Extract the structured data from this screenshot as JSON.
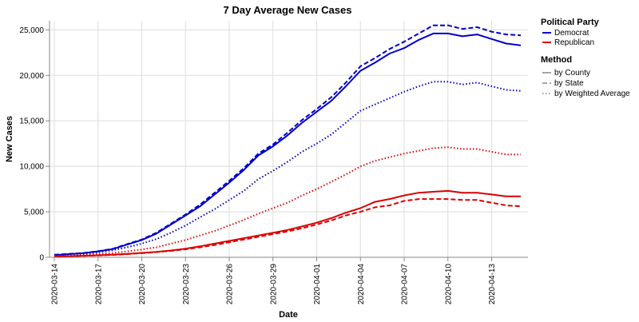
{
  "chart_data": {
    "type": "line",
    "title": "7 Day Average New Cases",
    "xlabel": "Date",
    "ylabel": "New Cases",
    "ylim": [
      0,
      26000
    ],
    "y_ticks": [
      0,
      5000,
      10000,
      15000,
      20000,
      25000
    ],
    "y_tick_labels": [
      "0",
      "5,000",
      "10,000",
      "15,000",
      "20,000",
      "25,000"
    ],
    "x_tick_labels": [
      "2020-03-14",
      "2020-03-17",
      "2020-03-20",
      "2020-03-23",
      "2020-03-26",
      "2020-03-29",
      "2020-04-01",
      "2020-04-04",
      "2020-04-07",
      "2020-04-10",
      "2020-04-13"
    ],
    "x": [
      "2020-03-14",
      "2020-03-15",
      "2020-03-16",
      "2020-03-17",
      "2020-03-18",
      "2020-03-19",
      "2020-03-20",
      "2020-03-21",
      "2020-03-22",
      "2020-03-23",
      "2020-03-24",
      "2020-03-25",
      "2020-03-26",
      "2020-03-27",
      "2020-03-28",
      "2020-03-29",
      "2020-03-30",
      "2020-03-31",
      "2020-04-01",
      "2020-04-02",
      "2020-04-03",
      "2020-04-04",
      "2020-04-05",
      "2020-04-06",
      "2020-04-07",
      "2020-04-08",
      "2020-04-09",
      "2020-04-10",
      "2020-04-11",
      "2020-04-12",
      "2020-04-13",
      "2020-04-14",
      "2020-04-15"
    ],
    "grid": true,
    "legend_position": "right",
    "legend": {
      "color_title": "Political Party",
      "color_entries": [
        {
          "label": "Democrat",
          "color": "#0000cc"
        },
        {
          "label": "Republican",
          "color": "#dd0000"
        }
      ],
      "dash_title": "Method",
      "dash_entries": [
        {
          "label": "by County",
          "dash": "solid"
        },
        {
          "label": "by State",
          "dash": "dashed"
        },
        {
          "label": "by Weighted Average",
          "dash": "dotted"
        }
      ]
    },
    "series": [
      {
        "party": "Democrat",
        "method": "by County",
        "color": "#0000cc",
        "dash": "solid",
        "values": [
          250,
          350,
          450,
          650,
          900,
          1400,
          1900,
          2600,
          3600,
          4600,
          5600,
          6900,
          8200,
          9600,
          11200,
          12200,
          13400,
          14800,
          16000,
          17200,
          18800,
          20500,
          21400,
          22400,
          23000,
          23900,
          24600,
          24600,
          24300,
          24500,
          24000,
          23500,
          23300
        ]
      },
      {
        "party": "Democrat",
        "method": "by State",
        "color": "#0000cc",
        "dash": "dashed",
        "values": [
          280,
          370,
          470,
          670,
          930,
          1450,
          1950,
          2700,
          3700,
          4700,
          5800,
          7100,
          8400,
          9800,
          11400,
          12400,
          13700,
          15100,
          16300,
          17600,
          19200,
          21000,
          21900,
          22900,
          23700,
          24600,
          25500,
          25500,
          25100,
          25300,
          24800,
          24500,
          24400
        ]
      },
      {
        "party": "Democrat",
        "method": "by Weighted Average",
        "color": "#0000cc",
        "dash": "dotted",
        "values": [
          200,
          290,
          380,
          550,
          770,
          1100,
          1500,
          2000,
          2700,
          3500,
          4400,
          5300,
          6300,
          7300,
          8600,
          9500,
          10500,
          11600,
          12500,
          13500,
          14800,
          16100,
          16800,
          17500,
          18200,
          18800,
          19300,
          19300,
          19000,
          19200,
          18800,
          18400,
          18300
        ]
      },
      {
        "party": "Republican",
        "method": "by County",
        "color": "#dd0000",
        "dash": "solid",
        "values": [
          100,
          130,
          170,
          220,
          290,
          380,
          480,
          600,
          750,
          950,
          1200,
          1500,
          1800,
          2100,
          2400,
          2700,
          3000,
          3400,
          3800,
          4300,
          4900,
          5400,
          6100,
          6400,
          6800,
          7100,
          7200,
          7300,
          7100,
          7100,
          6900,
          6700,
          6700
        ]
      },
      {
        "party": "Republican",
        "method": "by State",
        "color": "#dd0000",
        "dash": "dashed",
        "values": [
          90,
          120,
          160,
          200,
          260,
          350,
          450,
          570,
          700,
          880,
          1100,
          1350,
          1650,
          1950,
          2250,
          2550,
          2850,
          3200,
          3600,
          4050,
          4600,
          5000,
          5500,
          5700,
          6200,
          6400,
          6400,
          6400,
          6300,
          6300,
          6000,
          5700,
          5600
        ]
      },
      {
        "party": "Republican",
        "method": "by Weighted Average",
        "color": "#dd0000",
        "dash": "dotted",
        "values": [
          150,
          200,
          260,
          350,
          470,
          650,
          850,
          1100,
          1500,
          1900,
          2400,
          2900,
          3500,
          4100,
          4800,
          5400,
          6000,
          6800,
          7500,
          8300,
          9100,
          10000,
          10600,
          11000,
          11400,
          11700,
          12000,
          12100,
          11900,
          11900,
          11600,
          11300,
          11300
        ]
      }
    ]
  }
}
